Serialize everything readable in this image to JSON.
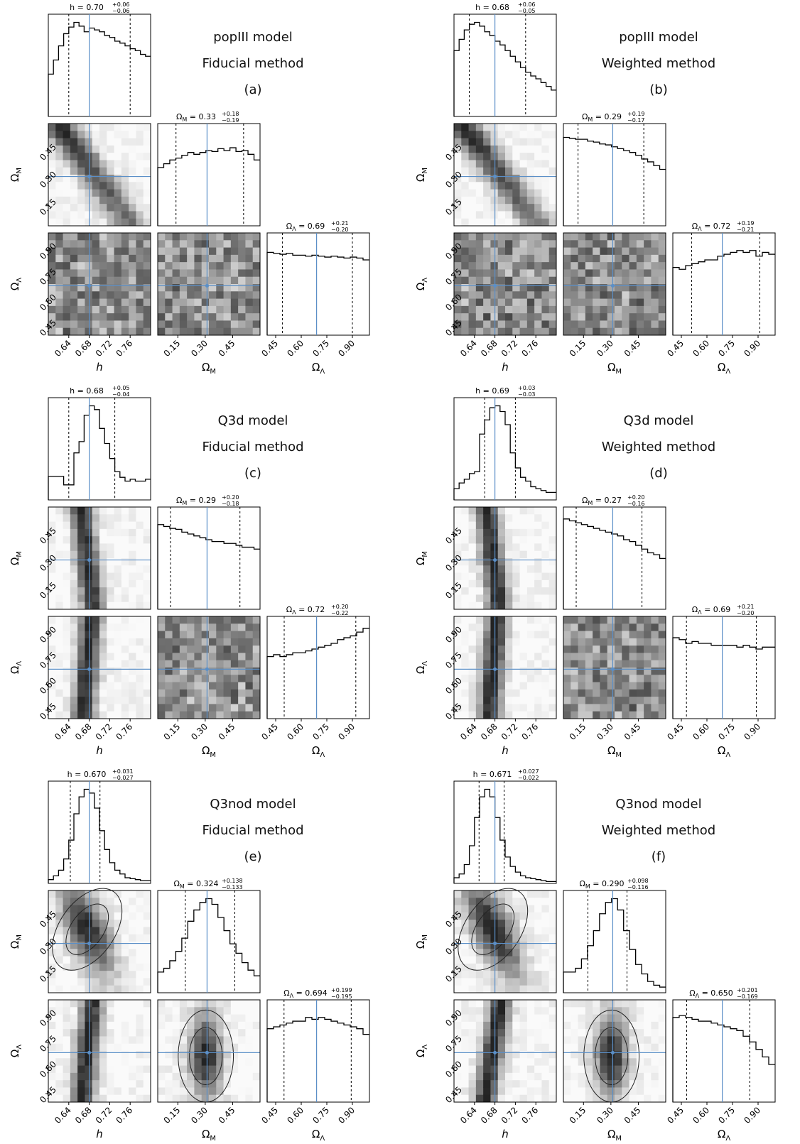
{
  "colors": {
    "truth_line": "#5b8fc7",
    "axis": "#000000",
    "contour": "#222222",
    "density_dark": "#1a1a1a"
  },
  "ticks": {
    "h": [
      "0.64",
      "0.68",
      "0.72",
      "0.76"
    ],
    "om": [
      "0.15",
      "0.30",
      "0.45"
    ],
    "ol": [
      "0.45",
      "0.60",
      "0.75",
      "0.90"
    ]
  },
  "axis_labels": {
    "h": "h",
    "om": "Ω",
    "om_sub": "M",
    "ol": "Ω",
    "ol_sub": "Λ"
  },
  "chart_data": [
    {
      "type": "corner",
      "model": "popIII model",
      "method": "Fiducial method",
      "label": "(a)",
      "parameters": [
        "h",
        "Ω_M",
        "Ω_Λ"
      ],
      "truths": {
        "h": 0.68,
        "om": 0.31,
        "ol": 0.69
      },
      "ranges": {
        "h": [
          0.6,
          0.8
        ],
        "om": [
          0.04,
          0.6
        ],
        "ol": [
          0.4,
          1.0
        ]
      },
      "titles": {
        "h": {
          "prefix": "h = ",
          "value": "0.70",
          "plus": "+0.06",
          "minus": "−0.06"
        },
        "om": {
          "prefix": "Ω",
          "sub": "M",
          "mid": " = ",
          "value": "0.33",
          "plus": "+0.18",
          "minus": "−0.19"
        },
        "ol": {
          "prefix": "Ω",
          "sub": "Λ",
          "mid": " = ",
          "value": "0.69",
          "plus": "+0.21",
          "minus": "−0.20"
        }
      },
      "quantiles": {
        "h": [
          0.64,
          0.76
        ],
        "om": [
          0.14,
          0.51
        ],
        "ol": [
          0.49,
          0.9
        ]
      },
      "hist": {
        "h": [
          0.45,
          0.6,
          0.75,
          0.88,
          0.95,
          1.0,
          0.96,
          0.9,
          0.94,
          0.92,
          0.9,
          0.86,
          0.84,
          0.8,
          0.78,
          0.75,
          0.72,
          0.7,
          0.66,
          0.64
        ],
        "om": [
          0.62,
          0.66,
          0.7,
          0.72,
          0.75,
          0.78,
          0.76,
          0.78,
          0.8,
          0.79,
          0.82,
          0.8,
          0.83,
          0.79,
          0.8,
          0.76,
          0.7
        ],
        "ol": [
          0.88,
          0.87,
          0.86,
          0.87,
          0.85,
          0.85,
          0.84,
          0.85,
          0.84,
          0.83,
          0.84,
          0.83,
          0.82,
          0.83,
          0.82,
          0.8
        ]
      },
      "joint": {
        "h_om": {
          "shape": "ridge",
          "corr": -0.8
        },
        "h_ol": {
          "shape": "blob"
        },
        "om_ol": {
          "shape": "blob"
        }
      }
    },
    {
      "type": "corner",
      "model": "popIII model",
      "method": "Weighted method",
      "label": "(b)",
      "parameters": [
        "h",
        "Ω_M",
        "Ω_Λ"
      ],
      "truths": {
        "h": 0.68,
        "om": 0.31,
        "ol": 0.69
      },
      "ranges": {
        "h": [
          0.6,
          0.8
        ],
        "om": [
          0.04,
          0.6
        ],
        "ol": [
          0.4,
          1.0
        ]
      },
      "titles": {
        "h": {
          "prefix": "h = ",
          "value": "0.68",
          "plus": "+0.06",
          "minus": "−0.05"
        },
        "om": {
          "prefix": "Ω",
          "sub": "M",
          "mid": " = ",
          "value": "0.29",
          "plus": "+0.19",
          "minus": "−0.17"
        },
        "ol": {
          "prefix": "Ω",
          "sub": "Λ",
          "mid": " = ",
          "value": "0.72",
          "plus": "+0.19",
          "minus": "−0.21"
        }
      },
      "quantiles": {
        "h": [
          0.63,
          0.74
        ],
        "om": [
          0.12,
          0.48
        ],
        "ol": [
          0.51,
          0.91
        ]
      },
      "hist": {
        "h": [
          0.7,
          0.82,
          0.92,
          0.98,
          1.0,
          0.96,
          0.9,
          0.86,
          0.8,
          0.76,
          0.7,
          0.64,
          0.58,
          0.52,
          0.47,
          0.43,
          0.4,
          0.36,
          0.32,
          0.28
        ],
        "om": [
          0.94,
          0.93,
          0.92,
          0.92,
          0.9,
          0.89,
          0.87,
          0.86,
          0.84,
          0.82,
          0.8,
          0.78,
          0.75,
          0.71,
          0.68,
          0.64,
          0.6
        ],
        "ol": [
          0.72,
          0.7,
          0.74,
          0.76,
          0.78,
          0.8,
          0.8,
          0.84,
          0.86,
          0.88,
          0.9,
          0.88,
          0.9,
          0.84,
          0.88,
          0.86
        ]
      },
      "joint": {
        "h_om": {
          "shape": "ridge",
          "corr": -0.85
        },
        "h_ol": {
          "shape": "blob"
        },
        "om_ol": {
          "shape": "blob"
        }
      }
    },
    {
      "type": "corner",
      "model": "Q3d model",
      "method": "Fiducial method",
      "label": "(c)",
      "parameters": [
        "h",
        "Ω_M",
        "Ω_Λ"
      ],
      "truths": {
        "h": 0.68,
        "om": 0.31,
        "ol": 0.69
      },
      "ranges": {
        "h": [
          0.6,
          0.8
        ],
        "om": [
          0.04,
          0.6
        ],
        "ol": [
          0.4,
          1.0
        ]
      },
      "titles": {
        "h": {
          "prefix": "h = ",
          "value": "0.68",
          "plus": "+0.05",
          "minus": "−0.04"
        },
        "om": {
          "prefix": "Ω",
          "sub": "M",
          "mid": " = ",
          "value": "0.29",
          "plus": "+0.20",
          "minus": "−0.18"
        },
        "ol": {
          "prefix": "Ω",
          "sub": "Λ",
          "mid": " = ",
          "value": "0.72",
          "plus": "+0.20",
          "minus": "−0.22"
        }
      },
      "quantiles": {
        "h": [
          0.64,
          0.73
        ],
        "om": [
          0.11,
          0.49
        ],
        "ol": [
          0.5,
          0.92
        ]
      },
      "hist": {
        "h": [
          0.25,
          0.25,
          0.25,
          0.16,
          0.16,
          0.5,
          0.62,
          0.9,
          1.0,
          0.96,
          0.76,
          0.6,
          0.44,
          0.3,
          0.24,
          0.2,
          0.22,
          0.2,
          0.2,
          0.22
        ],
        "om": [
          0.9,
          0.88,
          0.86,
          0.85,
          0.82,
          0.8,
          0.78,
          0.76,
          0.74,
          0.72,
          0.72,
          0.7,
          0.7,
          0.68,
          0.66,
          0.66,
          0.64
        ],
        "ol": [
          0.66,
          0.68,
          0.66,
          0.68,
          0.7,
          0.7,
          0.72,
          0.74,
          0.76,
          0.78,
          0.8,
          0.84,
          0.86,
          0.88,
          0.92,
          0.96
        ]
      },
      "joint": {
        "h_om": {
          "shape": "band",
          "corr": -0.3
        },
        "h_ol": {
          "shape": "band",
          "corr": 0.2
        },
        "om_ol": {
          "shape": "blob"
        }
      }
    },
    {
      "type": "corner",
      "model": "Q3d model",
      "method": "Weighted method",
      "label": "(d)",
      "parameters": [
        "h",
        "Ω_M",
        "Ω_Λ"
      ],
      "truths": {
        "h": 0.68,
        "om": 0.31,
        "ol": 0.69
      },
      "ranges": {
        "h": [
          0.6,
          0.8
        ],
        "om": [
          0.04,
          0.6
        ],
        "ol": [
          0.4,
          1.0
        ]
      },
      "titles": {
        "h": {
          "prefix": "h = ",
          "value": "0.69",
          "plus": "+0.03",
          "minus": "−0.03"
        },
        "om": {
          "prefix": "Ω",
          "sub": "M",
          "mid": " = ",
          "value": "0.27",
          "plus": "+0.20",
          "minus": "−0.16"
        },
        "ol": {
          "prefix": "Ω",
          "sub": "Λ",
          "mid": " = ",
          "value": "0.69",
          "plus": "+0.21",
          "minus": "−0.20"
        }
      },
      "quantiles": {
        "h": [
          0.66,
          0.72
        ],
        "om": [
          0.11,
          0.47
        ],
        "ol": [
          0.48,
          0.89
        ]
      },
      "hist": {
        "h": [
          0.12,
          0.18,
          0.22,
          0.28,
          0.3,
          0.7,
          0.85,
          0.98,
          1.0,
          0.94,
          0.8,
          0.5,
          0.34,
          0.24,
          0.2,
          0.14,
          0.12,
          0.1,
          0.08,
          0.08
        ],
        "om": [
          0.96,
          0.94,
          0.92,
          0.9,
          0.88,
          0.86,
          0.84,
          0.82,
          0.8,
          0.78,
          0.74,
          0.72,
          0.68,
          0.64,
          0.6,
          0.58,
          0.54
        ],
        "ol": [
          0.86,
          0.84,
          0.8,
          0.82,
          0.8,
          0.8,
          0.78,
          0.78,
          0.78,
          0.78,
          0.76,
          0.78,
          0.76,
          0.74,
          0.76,
          0.76
        ]
      },
      "joint": {
        "h_om": {
          "shape": "band",
          "corr": -0.3
        },
        "h_ol": {
          "shape": "band",
          "corr": 0.2
        },
        "om_ol": {
          "shape": "blob"
        }
      }
    },
    {
      "type": "corner",
      "model": "Q3nod model",
      "method": "Fiducial method",
      "label": "(e)",
      "parameters": [
        "h",
        "Ω_M",
        "Ω_Λ"
      ],
      "truths": {
        "h": 0.68,
        "om": 0.31,
        "ol": 0.69
      },
      "ranges": {
        "h": [
          0.6,
          0.8
        ],
        "om": [
          0.04,
          0.6
        ],
        "ol": [
          0.4,
          1.0
        ]
      },
      "titles": {
        "h": {
          "prefix": "h = ",
          "value": "0.670",
          "plus": "+0.031",
          "minus": "−0.027"
        },
        "om": {
          "prefix": "Ω",
          "sub": "M",
          "mid": " = ",
          "value": "0.324",
          "plus": "+0.138",
          "minus": "−0.133"
        },
        "ol": {
          "prefix": "Ω",
          "sub": "Λ",
          "mid": " = ",
          "value": "0.694",
          "plus": "+0.199",
          "minus": "−0.195"
        }
      },
      "quantiles": {
        "h": [
          0.643,
          0.701
        ],
        "om": [
          0.191,
          0.462
        ],
        "ol": [
          0.499,
          0.893
        ]
      },
      "hist": {
        "h": [
          0.04,
          0.08,
          0.14,
          0.26,
          0.46,
          0.74,
          0.92,
          1.0,
          0.96,
          0.8,
          0.56,
          0.36,
          0.22,
          0.14,
          0.1,
          0.06,
          0.05,
          0.04,
          0.03,
          0.03
        ],
        "om": [
          0.22,
          0.26,
          0.34,
          0.44,
          0.58,
          0.76,
          0.88,
          0.96,
          1.0,
          0.94,
          0.8,
          0.66,
          0.52,
          0.42,
          0.32,
          0.24,
          0.18
        ],
        "ol": [
          0.78,
          0.8,
          0.82,
          0.84,
          0.86,
          0.86,
          0.9,
          0.88,
          0.9,
          0.88,
          0.86,
          0.84,
          0.82,
          0.8,
          0.78,
          0.72
        ]
      },
      "joint": {
        "h_om": {
          "shape": "ellipse",
          "corr": -0.6
        },
        "h_ol": {
          "shape": "band",
          "corr": 0.25
        },
        "om_ol": {
          "shape": "vellipse"
        }
      }
    },
    {
      "type": "corner",
      "model": "Q3nod model",
      "method": "Weighted method",
      "label": "(f)",
      "parameters": [
        "h",
        "Ω_M",
        "Ω_Λ"
      ],
      "truths": {
        "h": 0.68,
        "om": 0.31,
        "ol": 0.69
      },
      "ranges": {
        "h": [
          0.6,
          0.8
        ],
        "om": [
          0.04,
          0.6
        ],
        "ol": [
          0.4,
          1.0
        ]
      },
      "titles": {
        "h": {
          "prefix": "h = ",
          "value": "0.671",
          "plus": "+0.027",
          "minus": "−0.022"
        },
        "om": {
          "prefix": "Ω",
          "sub": "M",
          "mid": " = ",
          "value": "0.290",
          "plus": "+0.098",
          "minus": "−0.116"
        },
        "ol": {
          "prefix": "Ω",
          "sub": "Λ",
          "mid": " = ",
          "value": "0.650",
          "plus": "+0.201",
          "minus": "−0.169"
        }
      },
      "quantiles": {
        "h": [
          0.649,
          0.698
        ],
        "om": [
          0.174,
          0.388
        ],
        "ol": [
          0.481,
          0.851
        ]
      },
      "hist": {
        "h": [
          0.06,
          0.1,
          0.2,
          0.4,
          0.7,
          0.92,
          1.0,
          0.92,
          0.7,
          0.46,
          0.28,
          0.18,
          0.12,
          0.08,
          0.06,
          0.05,
          0.04,
          0.03,
          0.02,
          0.02
        ],
        "om": [
          0.22,
          0.22,
          0.26,
          0.36,
          0.5,
          0.66,
          0.84,
          0.96,
          1.0,
          0.88,
          0.66,
          0.46,
          0.3,
          0.2,
          0.12,
          0.08,
          0.06
        ],
        "ol": [
          0.9,
          0.92,
          0.9,
          0.88,
          0.86,
          0.86,
          0.84,
          0.82,
          0.8,
          0.78,
          0.76,
          0.7,
          0.64,
          0.56,
          0.48,
          0.4
        ]
      },
      "joint": {
        "h_om": {
          "shape": "ellipse",
          "corr": -0.7
        },
        "h_ol": {
          "shape": "band",
          "corr": 0.4
        },
        "om_ol": {
          "shape": "vellipse"
        }
      }
    }
  ]
}
